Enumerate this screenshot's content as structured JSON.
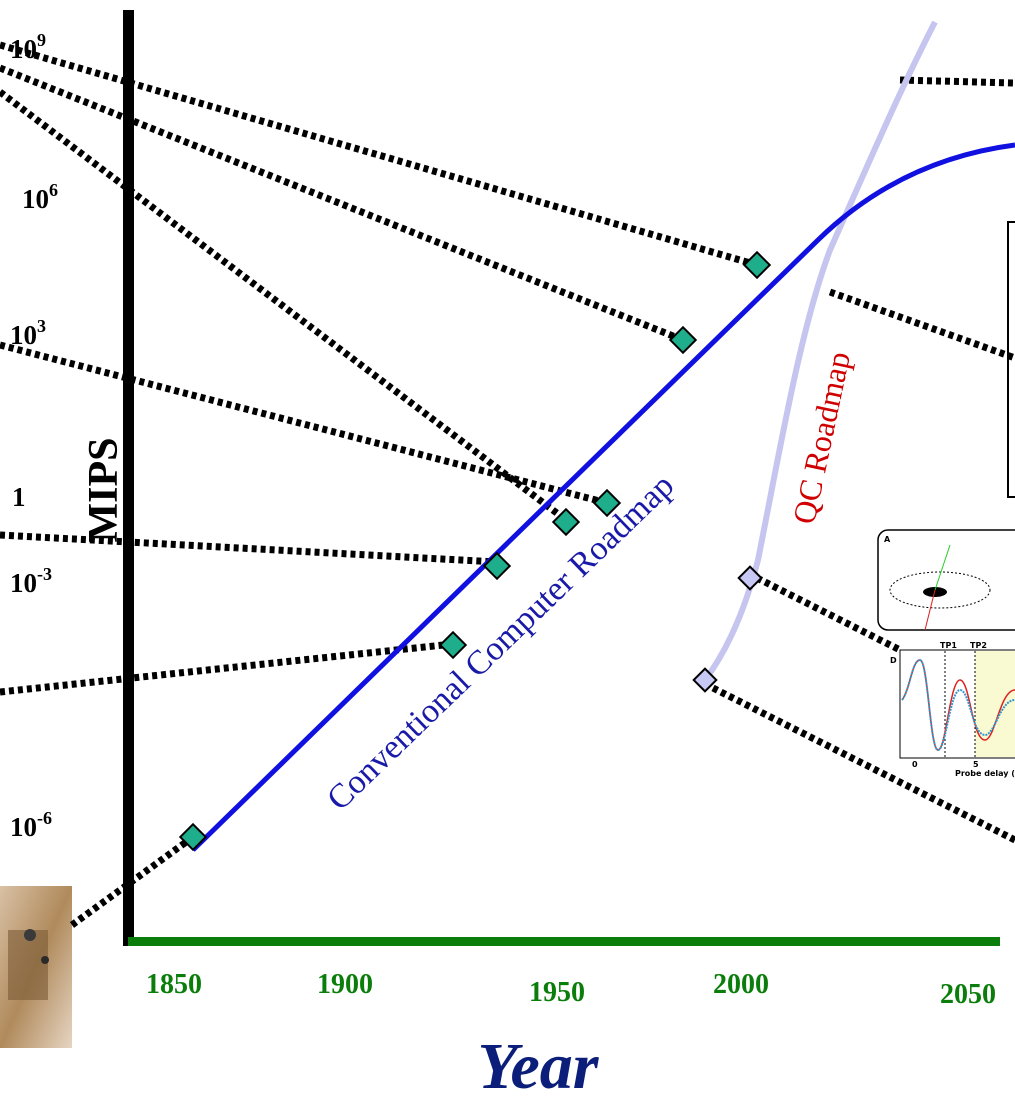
{
  "y_axis": {
    "title": "MIPS",
    "ticks": [
      {
        "base": "10",
        "exponent": "9"
      },
      {
        "base": "10",
        "exponent": "6"
      },
      {
        "base": "10",
        "exponent": "3"
      },
      {
        "base": "1"
      },
      {
        "base": "10",
        "exponent": "-3"
      },
      {
        "base": "10",
        "exponent": "-6"
      }
    ]
  },
  "x_axis": {
    "title": "Year",
    "ticks": [
      "1850",
      "1900",
      "1950",
      "2000",
      "2050"
    ]
  },
  "annotations": {
    "conventional": "Conventional Computer Roadmap",
    "qc": "QC Roadmap"
  },
  "inset": {
    "panels": [
      "A",
      "D"
    ],
    "markers": [
      "TP1",
      "TP2"
    ],
    "ticks": [
      "0",
      "5"
    ],
    "x_label": "Probe delay (p"
  }
}
